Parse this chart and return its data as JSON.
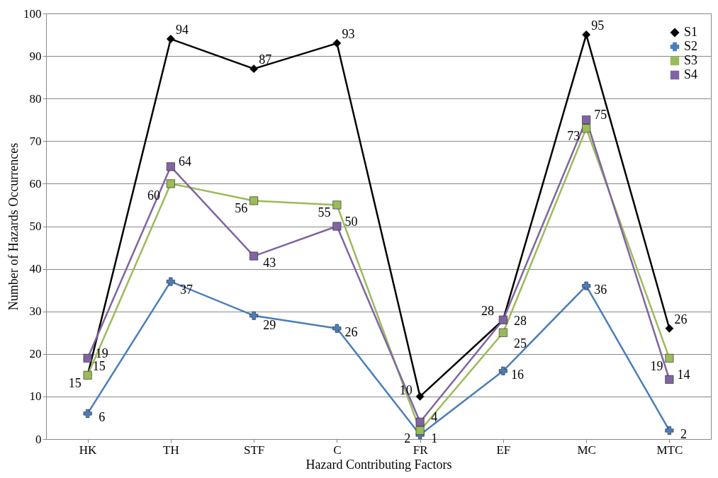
{
  "chart_data": {
    "type": "line",
    "xlabel": "Hazard Contributing Factors",
    "ylabel": "Number of Hazards Occurrences",
    "categories": [
      "HK",
      "TH",
      "STF",
      "C",
      "FR",
      "EF",
      "MC",
      "MTC"
    ],
    "series": [
      {
        "name": "S1",
        "color": "#000000",
        "marker": "diamond",
        "values": [
          15,
          94,
          87,
          93,
          10,
          28,
          95,
          26
        ]
      },
      {
        "name": "S2",
        "color": "#4a7ebb",
        "marker": "cross",
        "values": [
          6,
          37,
          29,
          26,
          1,
          16,
          36,
          2
        ]
      },
      {
        "name": "S3",
        "color": "#9bbb59",
        "marker": "square",
        "values": [
          15,
          60,
          56,
          55,
          2,
          25,
          73,
          19
        ]
      },
      {
        "name": "S4",
        "color": "#8064a2",
        "marker": "square",
        "values": [
          19,
          64,
          43,
          50,
          4,
          28,
          75,
          14
        ]
      }
    ],
    "ylim": [
      0,
      100
    ],
    "yticks": [
      0,
      10,
      20,
      30,
      40,
      50,
      60,
      70,
      80,
      90,
      100
    ],
    "grid": "y",
    "legend": "top right",
    "data_labels": true
  }
}
